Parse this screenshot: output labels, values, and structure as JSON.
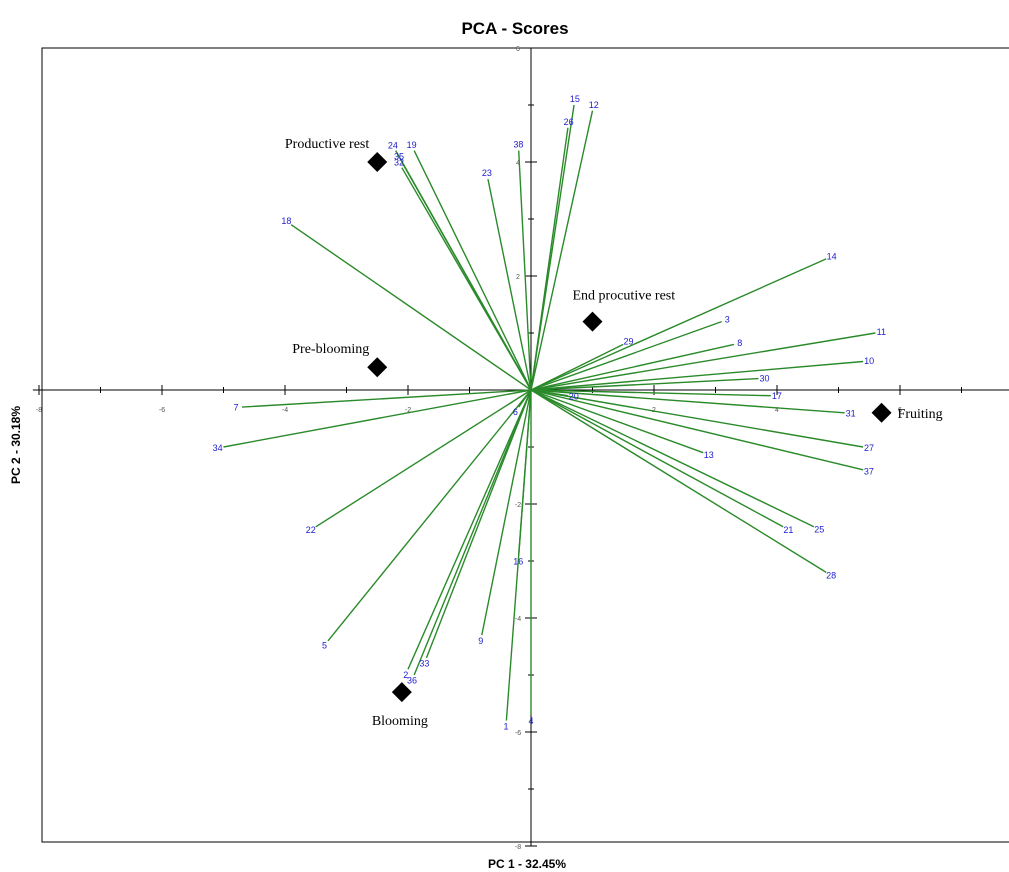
{
  "chart_data": {
    "type": "scatter",
    "subtype": "pca-biplot",
    "title": "PCA - Scores",
    "xlabel": "PC 1 - 32.45%",
    "ylabel": "PC 2 - 30.18%",
    "xlim": [
      -8.1,
      8
    ],
    "ylim": [
      -8,
      6
    ],
    "xticks": [
      -8,
      -6,
      -4,
      -2,
      0,
      2,
      4,
      6
    ],
    "yticks": [
      -8,
      -6,
      -4,
      -2,
      0,
      2,
      4,
      6
    ],
    "colors": {
      "vectors": "#2a8a2a",
      "vector_labels": "#1c1ccc",
      "markers": "#000000",
      "axes": "#000000"
    },
    "loadings": [
      {
        "label": "1",
        "x": -0.4,
        "y": -5.8
      },
      {
        "label": "2",
        "x": -2.0,
        "y": -4.9
      },
      {
        "label": "3",
        "x": 3.1,
        "y": 1.2
      },
      {
        "label": "4",
        "x": 0.0,
        "y": -5.7
      },
      {
        "label": "5",
        "x": -3.3,
        "y": -4.4
      },
      {
        "label": "6",
        "x": -0.2,
        "y": -0.3
      },
      {
        "label": "7",
        "x": -4.7,
        "y": -0.3
      },
      {
        "label": "8",
        "x": 3.3,
        "y": 0.8
      },
      {
        "label": "9",
        "x": -0.8,
        "y": -4.3
      },
      {
        "label": "10",
        "x": 5.4,
        "y": 0.5
      },
      {
        "label": "11",
        "x": 5.6,
        "y": 1.0
      },
      {
        "label": "12",
        "x": 1.0,
        "y": 4.9
      },
      {
        "label": "13",
        "x": 2.8,
        "y": -1.1
      },
      {
        "label": "14",
        "x": 4.8,
        "y": 2.3
      },
      {
        "label": "15",
        "x": 0.7,
        "y": 5.0
      },
      {
        "label": "16",
        "x": -0.2,
        "y": -2.9
      },
      {
        "label": "17",
        "x": 3.9,
        "y": -0.1
      },
      {
        "label": "18",
        "x": -3.9,
        "y": 2.9
      },
      {
        "label": "19",
        "x": -1.9,
        "y": 4.2
      },
      {
        "label": "20",
        "x": 0.6,
        "y": -0.1
      },
      {
        "label": "21",
        "x": 4.1,
        "y": -2.4
      },
      {
        "label": "22",
        "x": -3.5,
        "y": -2.4
      },
      {
        "label": "23",
        "x": -0.7,
        "y": 3.7
      },
      {
        "label": "24",
        "x": -2.2,
        "y": 4.2
      },
      {
        "label": "25",
        "x": 4.6,
        "y": -2.4
      },
      {
        "label": "26",
        "x": 0.6,
        "y": 4.6
      },
      {
        "label": "27",
        "x": 5.4,
        "y": -1.0
      },
      {
        "label": "28",
        "x": 4.8,
        "y": -3.2
      },
      {
        "label": "29",
        "x": 1.5,
        "y": 0.8
      },
      {
        "label": "30",
        "x": 3.7,
        "y": 0.2
      },
      {
        "label": "31",
        "x": 5.1,
        "y": -0.4
      },
      {
        "label": "32",
        "x": -2.1,
        "y": 3.9
      },
      {
        "label": "33",
        "x": -1.7,
        "y": -4.7
      },
      {
        "label": "34",
        "x": -5.0,
        "y": -1.0
      },
      {
        "label": "35",
        "x": -2.1,
        "y": 4.0
      },
      {
        "label": "36",
        "x": -1.9,
        "y": -5.0
      },
      {
        "label": "37",
        "x": 5.4,
        "y": -1.4
      },
      {
        "label": "38",
        "x": -0.2,
        "y": 4.2
      }
    ],
    "groups": [
      {
        "label": "Productive rest",
        "x": -2.5,
        "y": 4.0,
        "label_pos": "above-left"
      },
      {
        "label": "End procutive rest",
        "x": 1.0,
        "y": 1.2,
        "label_pos": "above-right"
      },
      {
        "label": "Pre-blooming",
        "x": -2.5,
        "y": 0.4,
        "label_pos": "above-left"
      },
      {
        "label": "Fruiting",
        "x": 5.7,
        "y": -0.4,
        "label_pos": "right"
      },
      {
        "label": "Blooming",
        "x": -2.1,
        "y": -5.3,
        "label_pos": "below"
      }
    ]
  }
}
